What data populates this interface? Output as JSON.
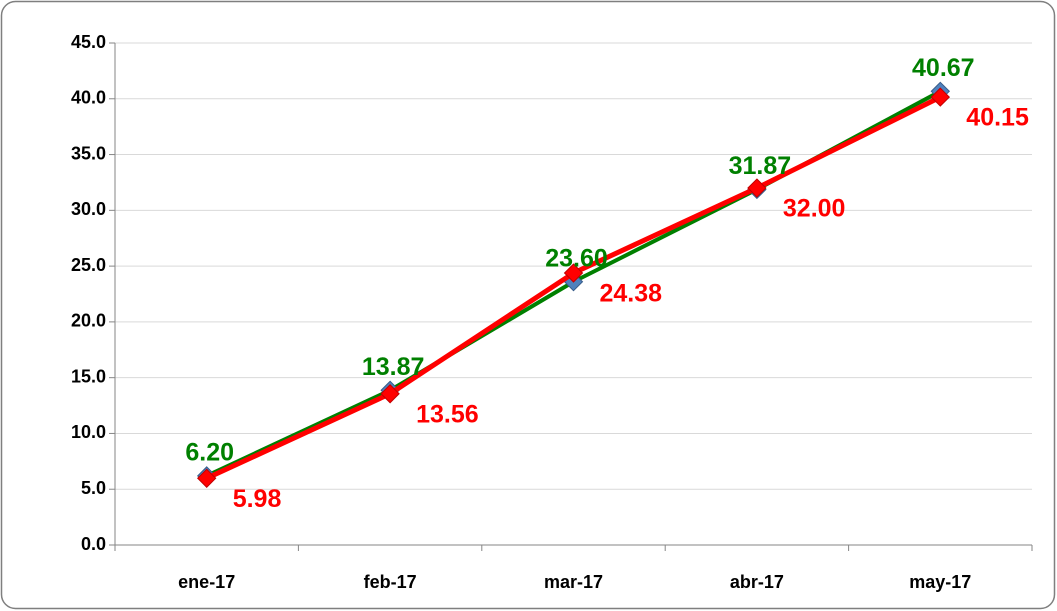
{
  "chart_data": {
    "type": "line",
    "categories": [
      "ene-17",
      "feb-17",
      "mar-17",
      "abr-17",
      "may-17"
    ],
    "series": [
      {
        "color": "#008000",
        "marker_color": "#4f81bd",
        "values": [
          6.2,
          13.87,
          23.6,
          31.87,
          40.67
        ],
        "value_labels": [
          "6.20",
          "13.87",
          "23.60",
          "31.87",
          "40.67"
        ]
      },
      {
        "color": "#ff0000",
        "marker_color": "#ff0000",
        "values": [
          5.98,
          13.56,
          24.38,
          32,
          40.15
        ],
        "value_labels": [
          "5.98",
          "13.56",
          "24.38",
          "32.00",
          "40.15"
        ]
      }
    ],
    "ylim": [
      0,
      45
    ],
    "yticks": [
      {
        "value": 0,
        "label": "0.0"
      },
      {
        "value": 5,
        "label": "5.0"
      },
      {
        "value": 10,
        "label": "10.0"
      },
      {
        "value": 15,
        "label": "15.0"
      },
      {
        "value": 20,
        "label": "20.0"
      },
      {
        "value": 25,
        "label": "25.0"
      },
      {
        "value": 30,
        "label": "30.0"
      },
      {
        "value": 35,
        "label": "35.0"
      },
      {
        "value": 40,
        "label": "40.0"
      },
      {
        "value": 45,
        "label": "45.0"
      }
    ],
    "grid": true
  }
}
